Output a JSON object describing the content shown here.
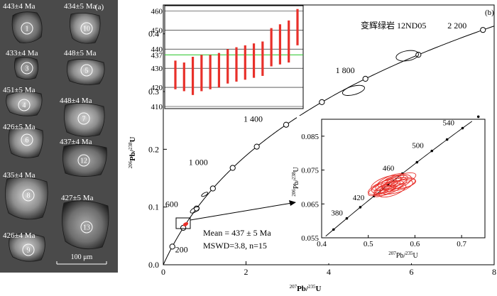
{
  "panel_a": {
    "label": "(a)",
    "scale_bar": "100 μm",
    "grains": [
      {
        "num": "1",
        "age": "443±4 Ma"
      },
      {
        "num": "10",
        "age": "434±5 Ma"
      },
      {
        "num": "3",
        "age": "433±4 Ma"
      },
      {
        "num": "5",
        "age": "448±5 Ma"
      },
      {
        "num": "4",
        "age": "451±5 Ma"
      },
      {
        "num": "7",
        "age": "448±4 Ma"
      },
      {
        "num": "6",
        "age": "426±5 Ma"
      },
      {
        "num": "12",
        "age": "437±4 Ma"
      },
      {
        "num": "8",
        "age": "435±4 Ma"
      },
      {
        "num": "13",
        "age": "427±5 Ma"
      },
      {
        "num": "9",
        "age": "426±4 Ma"
      }
    ]
  },
  "panel_b": {
    "label": "(b)",
    "sample": "变辉绿岩 12ND05",
    "xlabel_sup": "207",
    "xlabel_main": "Pb/",
    "xlabel_sup2": "235",
    "xlabel_end": "U",
    "ylabel_sup": "206",
    "ylabel_main": "Pb/",
    "ylabel_sup2": "238",
    "ylabel_end": "U",
    "mean_text": "Mean = 437 ± 5 Ma",
    "mswd_text": "MSWD=3.8, n=15",
    "colors": {
      "error_bar": "#e8302a",
      "mean_line": "#22c422",
      "curve": "#000000"
    }
  },
  "chart_data": [
    {
      "type": "scatter",
      "name": "concordia",
      "xlim": [
        0,
        8
      ],
      "ylim": [
        0,
        0.45
      ],
      "xticks": [
        "0",
        "2",
        "4",
        "6",
        "8"
      ],
      "yticks": [
        "0.0",
        "0.1",
        "0.2",
        "0.3",
        "0.4"
      ],
      "age_labels": [
        "200",
        "600",
        "1 000",
        "1 400",
        "1 800",
        "2 200"
      ],
      "age_markers_ma": [
        200,
        400,
        600,
        800,
        1000,
        1200,
        1400,
        1600,
        1800,
        2000,
        2200
      ]
    },
    {
      "type": "bar",
      "name": "weighted-mean-inset",
      "ylim": [
        410,
        462
      ],
      "yticks": [
        "410",
        "420",
        "430",
        "437",
        "440",
        "450",
        "460"
      ],
      "mean": 437,
      "bars": [
        [
          419,
          434
        ],
        [
          418,
          433
        ],
        [
          416,
          436
        ],
        [
          418,
          437
        ],
        [
          419,
          437
        ],
        [
          420,
          438
        ],
        [
          422,
          440
        ],
        [
          423,
          441
        ],
        [
          424,
          442
        ],
        [
          425,
          443
        ],
        [
          426,
          444
        ],
        [
          431,
          451
        ],
        [
          432,
          453
        ],
        [
          433,
          455
        ],
        [
          442,
          461
        ]
      ]
    },
    {
      "type": "scatter",
      "name": "zoom-inset",
      "xlim": [
        0.4,
        0.75
      ],
      "ylim": [
        0.055,
        0.09
      ],
      "xticks": [
        "0.4",
        "0.5",
        "0.6",
        "0.7"
      ],
      "yticks": [
        "0.055",
        "0.065",
        "0.075",
        "0.085"
      ],
      "age_labels": [
        "380",
        "420",
        "460",
        "500",
        "540"
      ]
    }
  ]
}
